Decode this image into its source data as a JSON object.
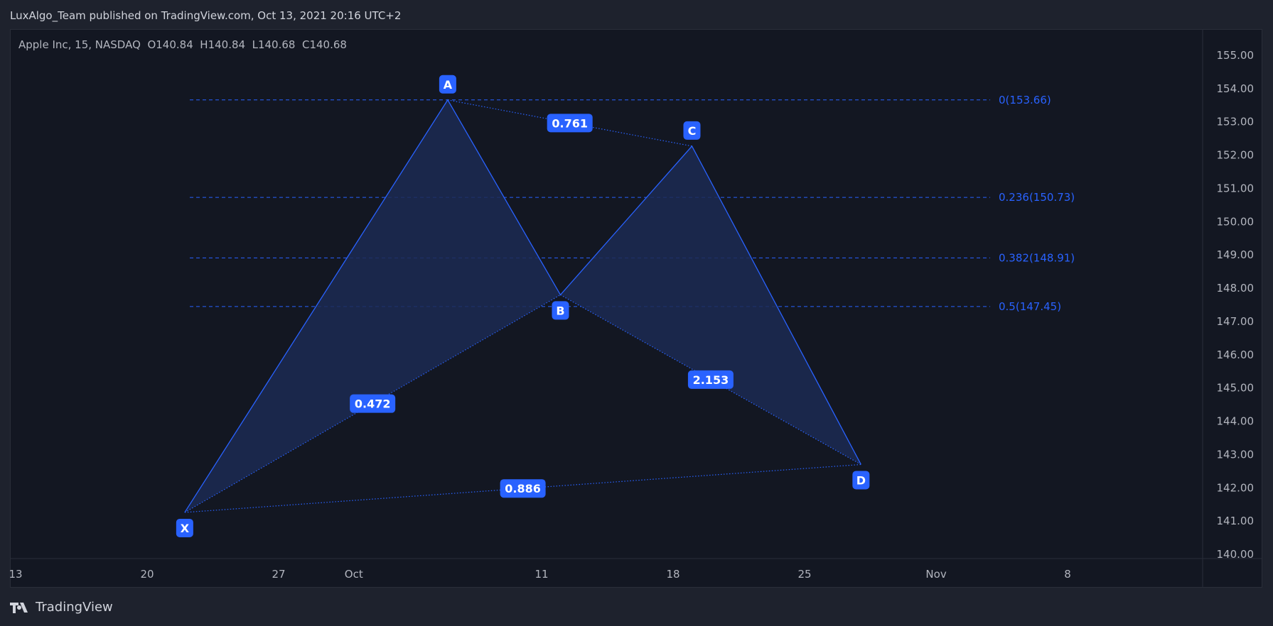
{
  "header": {
    "published": "LuxAlgo_Team published on TradingView.com, Oct 13, 2021 20:16 UTC+2"
  },
  "legend": {
    "symbol": "Apple Inc, 15, NASDAQ",
    "open": "O140.84",
    "high": "H140.84",
    "low": "L140.68",
    "close": "C140.68"
  },
  "price_axis": {
    "ticks": [
      "155.00",
      "154.00",
      "153.00",
      "152.00",
      "151.00",
      "150.00",
      "149.00",
      "148.00",
      "147.00",
      "146.00",
      "145.00",
      "144.00",
      "143.00",
      "142.00",
      "141.00",
      "140.00"
    ]
  },
  "time_axis": {
    "ticks": [
      {
        "label": "13",
        "date": "2021-09-13"
      },
      {
        "label": "20",
        "date": "2021-09-20"
      },
      {
        "label": "27",
        "date": "2021-09-27"
      },
      {
        "label": "Oct",
        "date": "2021-10-01"
      },
      {
        "label": "11",
        "date": "2021-10-11"
      },
      {
        "label": "18",
        "date": "2021-10-18"
      },
      {
        "label": "25",
        "date": "2021-10-25"
      },
      {
        "label": "Nov",
        "date": "2021-11-01"
      },
      {
        "label": "8",
        "date": "2021-11-08"
      }
    ]
  },
  "pattern": {
    "color": "#2962ff",
    "fill": "#1c2a52",
    "points": [
      {
        "label": "X",
        "date": "2021-09-22",
        "price": 141.26
      },
      {
        "label": "A",
        "date": "2021-10-06",
        "price": 153.66
      },
      {
        "label": "B",
        "date": "2021-10-12",
        "price": 147.8
      },
      {
        "label": "C",
        "date": "2021-10-19",
        "price": 152.27
      },
      {
        "label": "D",
        "date": "2021-10-28",
        "price": 142.7
      }
    ],
    "ratios": [
      {
        "value": "0.761",
        "from": "A",
        "to": "C"
      },
      {
        "value": "0.472",
        "from": "X",
        "to": "B"
      },
      {
        "value": "2.153",
        "from": "B",
        "to": "D"
      },
      {
        "value": "0.886",
        "from": "X",
        "to": "D"
      }
    ],
    "fib_levels": [
      {
        "label": "0(153.66)",
        "price": 153.66
      },
      {
        "label": "0.236(150.73)",
        "price": 150.73
      },
      {
        "label": "0.382(148.91)",
        "price": 148.91
      },
      {
        "label": "0.5(147.45)",
        "price": 147.45
      }
    ]
  },
  "footer": {
    "brand": "TradingView"
  }
}
